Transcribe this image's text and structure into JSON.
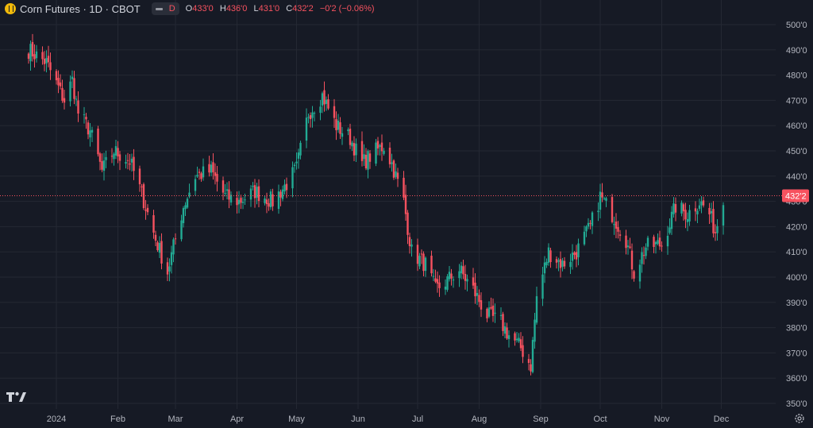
{
  "header": {
    "symbol_title": "Corn Futures · 1D · CBOT",
    "icon": "coin-icon",
    "interval_badge": "D",
    "ohlc": {
      "o_label": "O",
      "o_value": "433'0",
      "h_label": "H",
      "h_value": "436'0",
      "l_label": "L",
      "l_value": "431'0",
      "c_label": "C",
      "c_value": "432'2",
      "change": "−0'2 (−0.06%)"
    }
  },
  "colors": {
    "background": "#161a25",
    "grid": "#242833",
    "up": "#22ab94",
    "down": "#f7525f",
    "axis_text": "#b2b5be",
    "price_line": "#f7525f"
  },
  "last_price_label": "432'2",
  "chart_data": {
    "type": "candlestick",
    "title": "Corn Futures · 1D · CBOT",
    "xlabel": "",
    "ylabel": "",
    "ylim": [
      350,
      505
    ],
    "y_ticks": [
      "350'0",
      "360'0",
      "370'0",
      "380'0",
      "390'0",
      "400'0",
      "410'0",
      "420'0",
      "430'0",
      "440'0",
      "450'0",
      "460'0",
      "470'0",
      "480'0",
      "490'0",
      "500'0"
    ],
    "x_ticks": [
      "2024",
      "Feb",
      "Mar",
      "Apr",
      "May",
      "Jun",
      "Jul",
      "Aug",
      "Sep",
      "Oct",
      "Nov",
      "Dec"
    ],
    "grid": true,
    "last_price": 432.25,
    "series_path": [
      [
        "2023-12-18",
        490
      ],
      [
        "2023-12-27",
        485
      ],
      [
        "2024-01-05",
        470
      ],
      [
        "2024-01-09",
        478
      ],
      [
        "2024-01-12",
        465
      ],
      [
        "2024-01-18",
        458
      ],
      [
        "2024-01-24",
        442
      ],
      [
        "2024-01-30",
        450
      ],
      [
        "2024-02-07",
        446
      ],
      [
        "2024-02-13",
        433
      ],
      [
        "2024-02-20",
        415
      ],
      [
        "2024-02-26",
        402
      ],
      [
        "2024-02-29",
        412
      ],
      [
        "2024-03-05",
        428
      ],
      [
        "2024-03-11",
        440
      ],
      [
        "2024-03-19",
        442
      ],
      [
        "2024-03-26",
        432
      ],
      [
        "2024-04-02",
        430
      ],
      [
        "2024-04-10",
        434
      ],
      [
        "2024-04-19",
        430
      ],
      [
        "2024-04-26",
        437
      ],
      [
        "2024-05-01",
        443
      ],
      [
        "2024-05-07",
        465
      ],
      [
        "2024-05-14",
        472
      ],
      [
        "2024-05-21",
        460
      ],
      [
        "2024-05-28",
        455
      ],
      [
        "2024-06-03",
        445
      ],
      [
        "2024-06-10",
        450
      ],
      [
        "2024-06-14",
        452
      ],
      [
        "2024-06-18",
        445
      ],
      [
        "2024-06-24",
        430
      ],
      [
        "2024-06-28",
        410
      ],
      [
        "2024-07-05",
        405
      ],
      [
        "2024-07-10",
        395
      ],
      [
        "2024-07-15",
        398
      ],
      [
        "2024-07-22",
        403
      ],
      [
        "2024-07-29",
        395
      ],
      [
        "2024-08-05",
        385
      ],
      [
        "2024-08-12",
        382
      ],
      [
        "2024-08-16",
        377
      ],
      [
        "2024-08-22",
        372
      ],
      [
        "2024-08-27",
        365
      ],
      [
        "2024-08-30",
        392
      ],
      [
        "2024-09-05",
        410
      ],
      [
        "2024-09-12",
        405
      ],
      [
        "2024-09-19",
        410
      ],
      [
        "2024-09-26",
        420
      ],
      [
        "2024-10-01",
        432
      ],
      [
        "2024-10-07",
        425
      ],
      [
        "2024-10-14",
        415
      ],
      [
        "2024-10-18",
        402
      ],
      [
        "2024-10-24",
        412
      ],
      [
        "2024-11-01",
        413
      ],
      [
        "2024-11-08",
        428
      ],
      [
        "2024-11-14",
        425
      ],
      [
        "2024-11-20",
        430
      ],
      [
        "2024-11-25",
        425
      ],
      [
        "2024-11-28",
        418
      ],
      [
        "2024-12-02",
        432
      ]
    ]
  }
}
